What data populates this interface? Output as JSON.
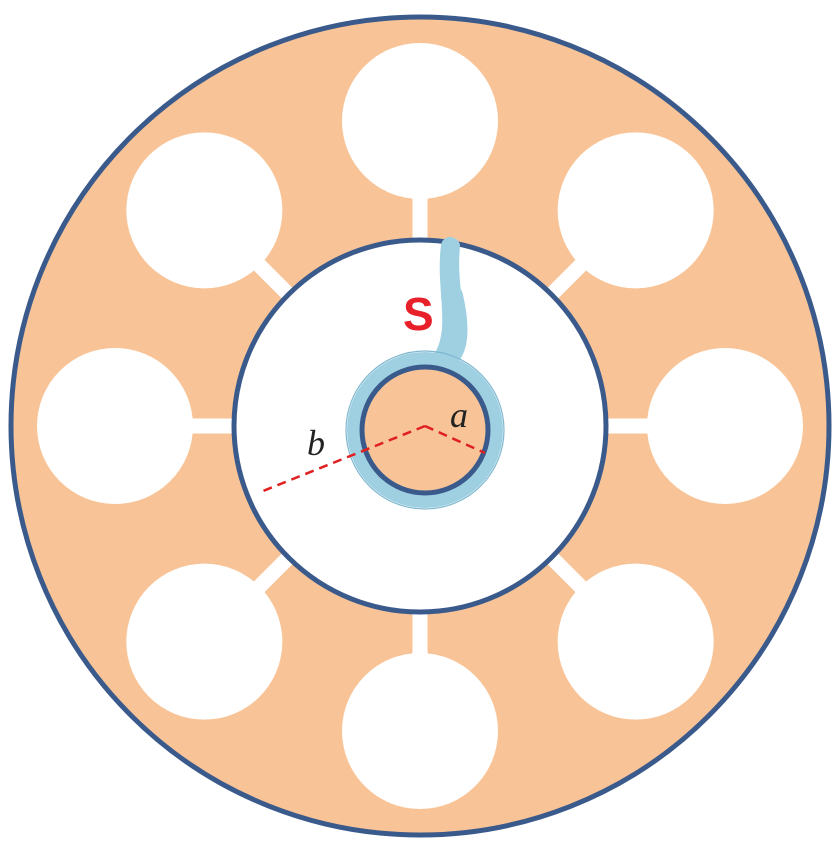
{
  "labels": {
    "source": "S",
    "inner_radius": "a",
    "outer_radius": "b"
  },
  "colors": {
    "fill_peach": "#F8C497",
    "outline_blue": "#3B5A8C",
    "tube_light_blue": "#9FD0E2",
    "label_red": "#E8202A",
    "dashed_red": "#E02020",
    "radius_label": "#222222",
    "hole_white": "#FFFFFF"
  },
  "elements": {
    "outer_holes": {
      "count": 8
    }
  }
}
